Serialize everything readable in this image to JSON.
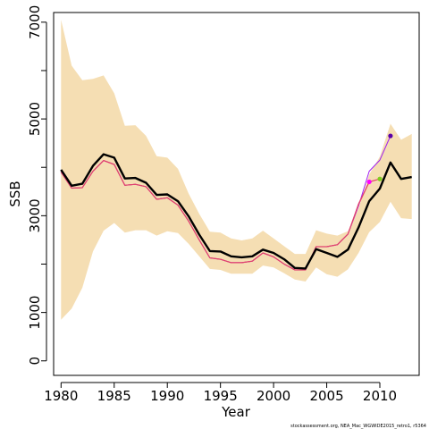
{
  "chart_data": {
    "type": "line",
    "xlabel": "Year",
    "ylabel": "SSB",
    "xlim": [
      1979.3,
      2013.7
    ],
    "ylim": [
      -300,
      7200
    ],
    "x_ticks": [
      "1980",
      "1985",
      "1990",
      "1995",
      "2000",
      "2005",
      "2010"
    ],
    "y_ticks": [
      "0",
      "1000",
      "3000",
      "5000",
      "7000"
    ],
    "y_minor_ticks": [
      2000,
      4000,
      6000
    ],
    "grid": false,
    "legend": "none",
    "footnote": "stockassessment.org, NEA_Mac_WGWIDE2015_retro1, r5364",
    "colors": {
      "band": "#f5deb3",
      "main": "#000000",
      "retro_line": "#e0426e",
      "retro_line2": "#a020f0",
      "point_magenta": "#ff00ff",
      "point_green": "#7fcc1f",
      "point_purple": "#5a00a8"
    },
    "band": {
      "x": [
        1980,
        1981,
        1982,
        1983,
        1984,
        1985,
        1986,
        1987,
        1988,
        1989,
        1990,
        1991,
        1992,
        1993,
        1994,
        1995,
        1996,
        1997,
        1998,
        1999,
        2000,
        2001,
        2002,
        2003,
        2004,
        2005,
        2006,
        2007,
        2008,
        2009,
        2010,
        2011,
        2012,
        2013
      ],
      "upper": [
        7050,
        6100,
        5800,
        5830,
        5900,
        5530,
        4860,
        4870,
        4650,
        4230,
        4200,
        3970,
        3460,
        3040,
        2670,
        2650,
        2530,
        2490,
        2530,
        2690,
        2530,
        2370,
        2210,
        2210,
        2700,
        2630,
        2590,
        2680,
        3150,
        3850,
        4220,
        4900,
        4570,
        4690
      ],
      "lower": [
        850,
        1080,
        1510,
        2260,
        2690,
        2850,
        2650,
        2700,
        2700,
        2590,
        2680,
        2640,
        2420,
        2160,
        1900,
        1880,
        1800,
        1800,
        1800,
        1970,
        1930,
        1810,
        1680,
        1640,
        1930,
        1790,
        1740,
        1890,
        2230,
        2660,
        2870,
        3290,
        2950,
        2930
      ]
    },
    "series": [
      {
        "values": [
          3950,
          3620,
          3660,
          4030,
          4270,
          4200,
          3770,
          3780,
          3680,
          3430,
          3440,
          3300,
          2990,
          2610,
          2270,
          2260,
          2160,
          2140,
          2160,
          2300,
          2230,
          2100,
          1920,
          1910,
          2310,
          2230,
          2150,
          2300,
          2760,
          3300,
          3560,
          4100,
          3760,
          3800
        ]
      },
      {
        "values": [
          3900,
          3570,
          3580,
          3920,
          4140,
          4060,
          3630,
          3650,
          3600,
          3340,
          3370,
          3220,
          2890,
          2500,
          2130,
          2100,
          2030,
          2030,
          2060,
          2230,
          2150,
          2000,
          1880,
          1880,
          2360,
          2360,
          2400,
          2620,
          3200,
          3920,
          4150,
          4650,
          null,
          null
        ]
      },
      {
        "values": [
          3900,
          3570,
          3580,
          3920,
          4140,
          4060,
          3630,
          3650,
          3600,
          3340,
          3370,
          3220,
          2890,
          2500,
          2130,
          2100,
          2030,
          2030,
          2060,
          2230,
          2150,
          2000,
          1880,
          1880,
          2360,
          2360,
          2400,
          2620,
          3250,
          3700,
          null,
          null,
          null,
          null
        ]
      },
      {
        "values": [
          3900,
          3570,
          3580,
          3920,
          4140,
          4060,
          3630,
          3650,
          3600,
          3340,
          3370,
          3220,
          2890,
          2500,
          2130,
          2100,
          2030,
          2030,
          2060,
          2230,
          2150,
          2000,
          1880,
          1880,
          2360,
          2360,
          2400,
          2620,
          3230,
          3700,
          3760,
          null,
          null,
          null
        ]
      }
    ],
    "points": [
      {
        "x": 2009,
        "y": 3700,
        "color_key": "point_magenta"
      },
      {
        "x": 2010,
        "y": 3760,
        "color_key": "point_green"
      },
      {
        "x": 2011,
        "y": 4650,
        "color_key": "point_purple"
      }
    ]
  }
}
